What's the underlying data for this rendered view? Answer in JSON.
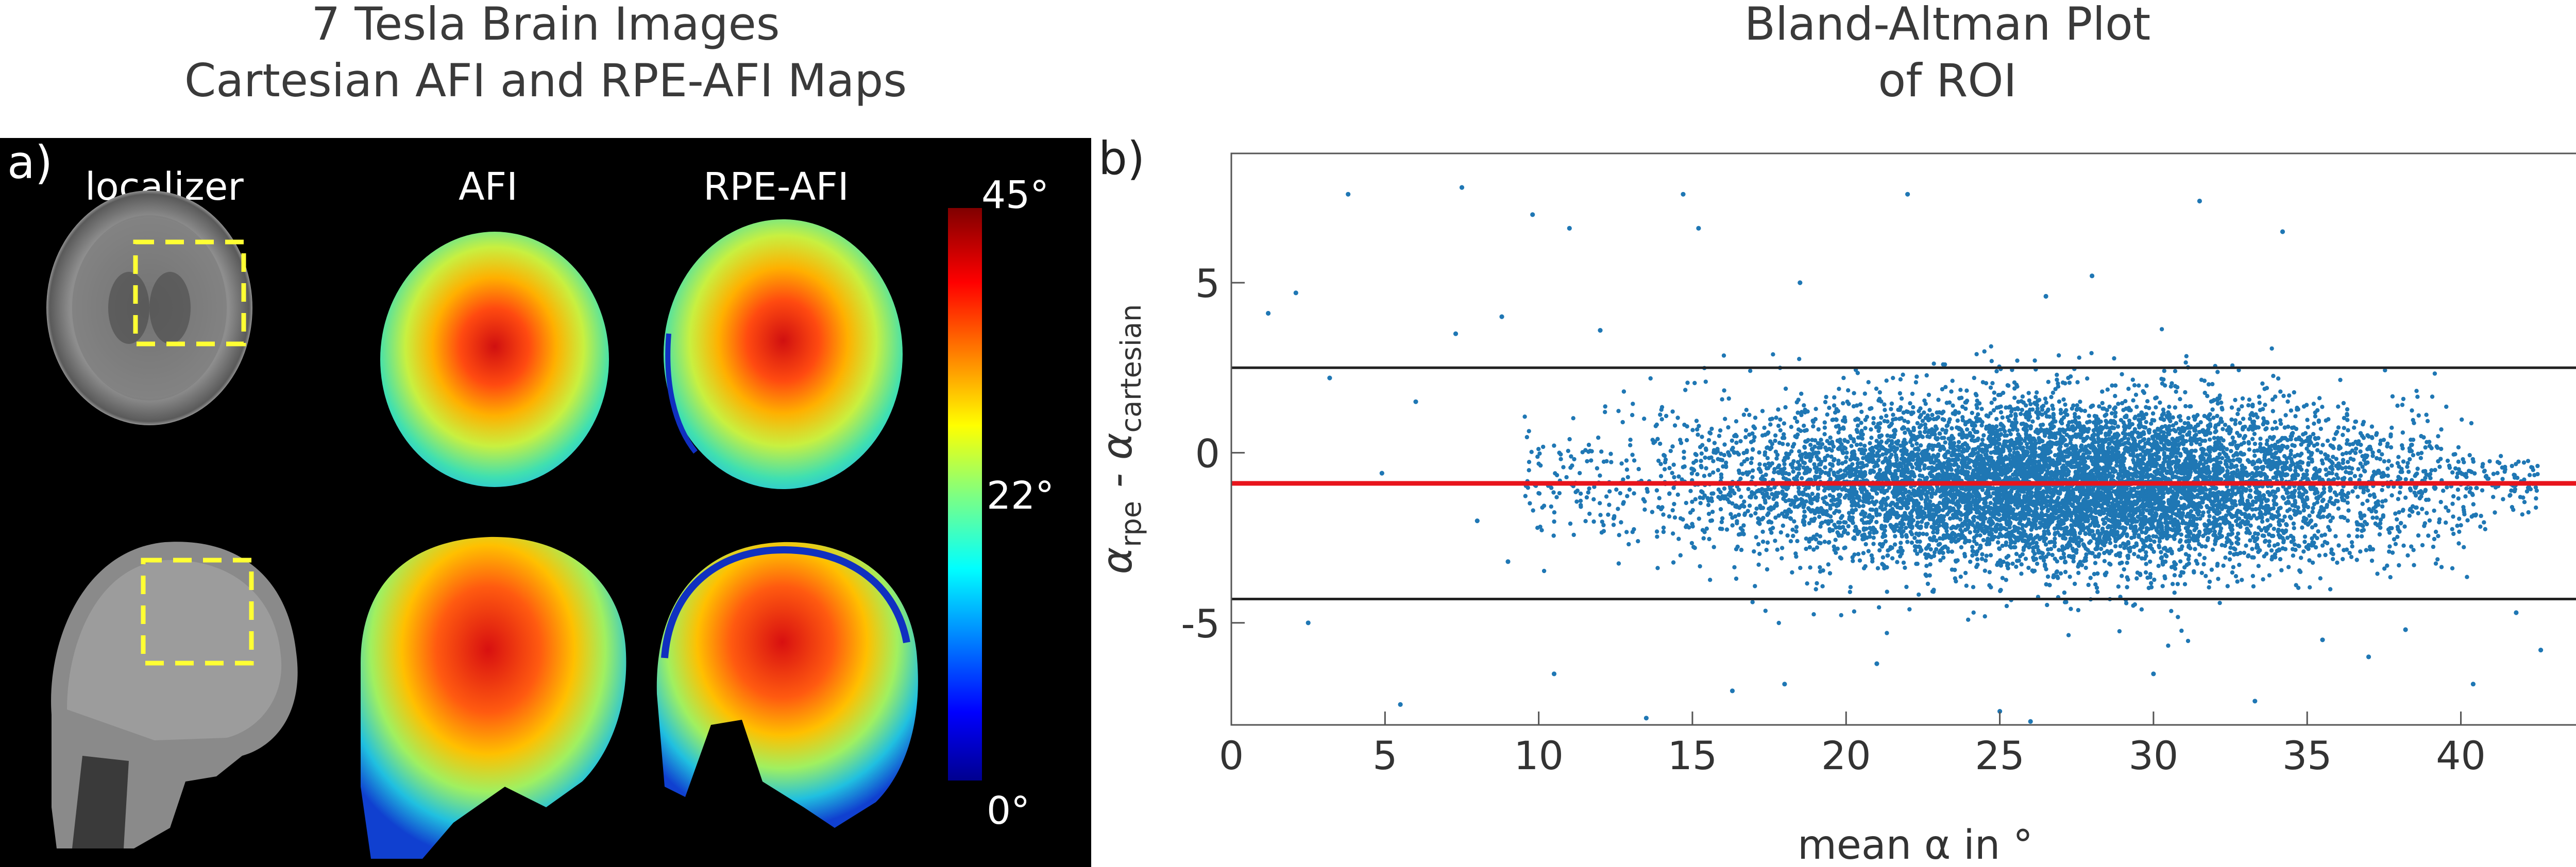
{
  "left_title": {
    "line1": "7 Tesla Brain Images",
    "line2": "Cartesian AFI and RPE-AFI Maps"
  },
  "right_title": {
    "line1": "Bland-Altman Plot",
    "line2": "of ROI"
  },
  "panel_a": {
    "letter": "a)",
    "columns": [
      "localizer",
      "AFI",
      "RPE-AFI"
    ],
    "colorbar": {
      "max_label": "45°",
      "mid_label": "22°",
      "min_label": "0°",
      "range": [
        0,
        45
      ]
    }
  },
  "panel_b": {
    "letter": "b)"
  },
  "chart_data": {
    "type": "scatter",
    "title": "Bland-Altman Plot of ROI",
    "xlabel": "mean α in °",
    "ylabel": {
      "prefix": "α",
      "sub1": "rpe",
      "mid": " - α",
      "sub2": "cartesian"
    },
    "xlim": [
      0,
      44.5
    ],
    "ylim": [
      -8,
      8.8
    ],
    "xticks": [
      0,
      5,
      10,
      15,
      20,
      25,
      30,
      35,
      40
    ],
    "yticks": [
      -5,
      0,
      5
    ],
    "grid": false,
    "point_color": "#1f77b4",
    "lines": [
      {
        "y": 2.5,
        "label": "2.5",
        "color": "#222222"
      },
      {
        "y": -0.9,
        "label": "-0.9",
        "color": "#e8141c"
      },
      {
        "y": -4.3,
        "label": "-4.3",
        "color": "#222222"
      }
    ],
    "outlier_points": [
      [
        1.2,
        4.1
      ],
      [
        2.1,
        4.7
      ],
      [
        3.8,
        7.6
      ],
      [
        7.5,
        7.8
      ],
      [
        9.8,
        7.0
      ],
      [
        11.0,
        6.6
      ],
      [
        14.7,
        7.6
      ],
      [
        15.2,
        6.6
      ],
      [
        22.0,
        7.6
      ],
      [
        31.5,
        7.4
      ],
      [
        34.2,
        6.5
      ],
      [
        28.0,
        5.2
      ],
      [
        18.5,
        5.0
      ],
      [
        26.5,
        4.6
      ],
      [
        5.5,
        -7.4
      ],
      [
        6.0,
        1.5
      ],
      [
        7.3,
        3.5
      ],
      [
        8.8,
        4.0
      ],
      [
        2.5,
        -5.0
      ],
      [
        10.5,
        -6.5
      ],
      [
        13.5,
        -7.8
      ],
      [
        16.3,
        -7.0
      ],
      [
        18.0,
        -6.8
      ],
      [
        21.0,
        -6.2
      ],
      [
        25.0,
        -7.6
      ],
      [
        26.0,
        -7.9
      ],
      [
        33.3,
        -7.3
      ],
      [
        40.4,
        -6.8
      ],
      [
        44.0,
        -6.4
      ],
      [
        42.6,
        -5.8
      ],
      [
        41.8,
        -4.7
      ],
      [
        38.2,
        -5.2
      ],
      [
        37.0,
        -6.0
      ],
      [
        3.2,
        2.2
      ],
      [
        4.9,
        -0.6
      ],
      [
        8.0,
        -2.0
      ],
      [
        9.0,
        -3.2
      ],
      [
        12.0,
        3.6
      ],
      [
        30.0,
        -6.5
      ],
      [
        35.5,
        -5.5
      ]
    ],
    "main_cloud": {
      "x_range": [
        9.5,
        42.5
      ],
      "density_peak_x": 27,
      "y_center": -0.9,
      "y_spread": 1.2,
      "count": 9000
    }
  }
}
